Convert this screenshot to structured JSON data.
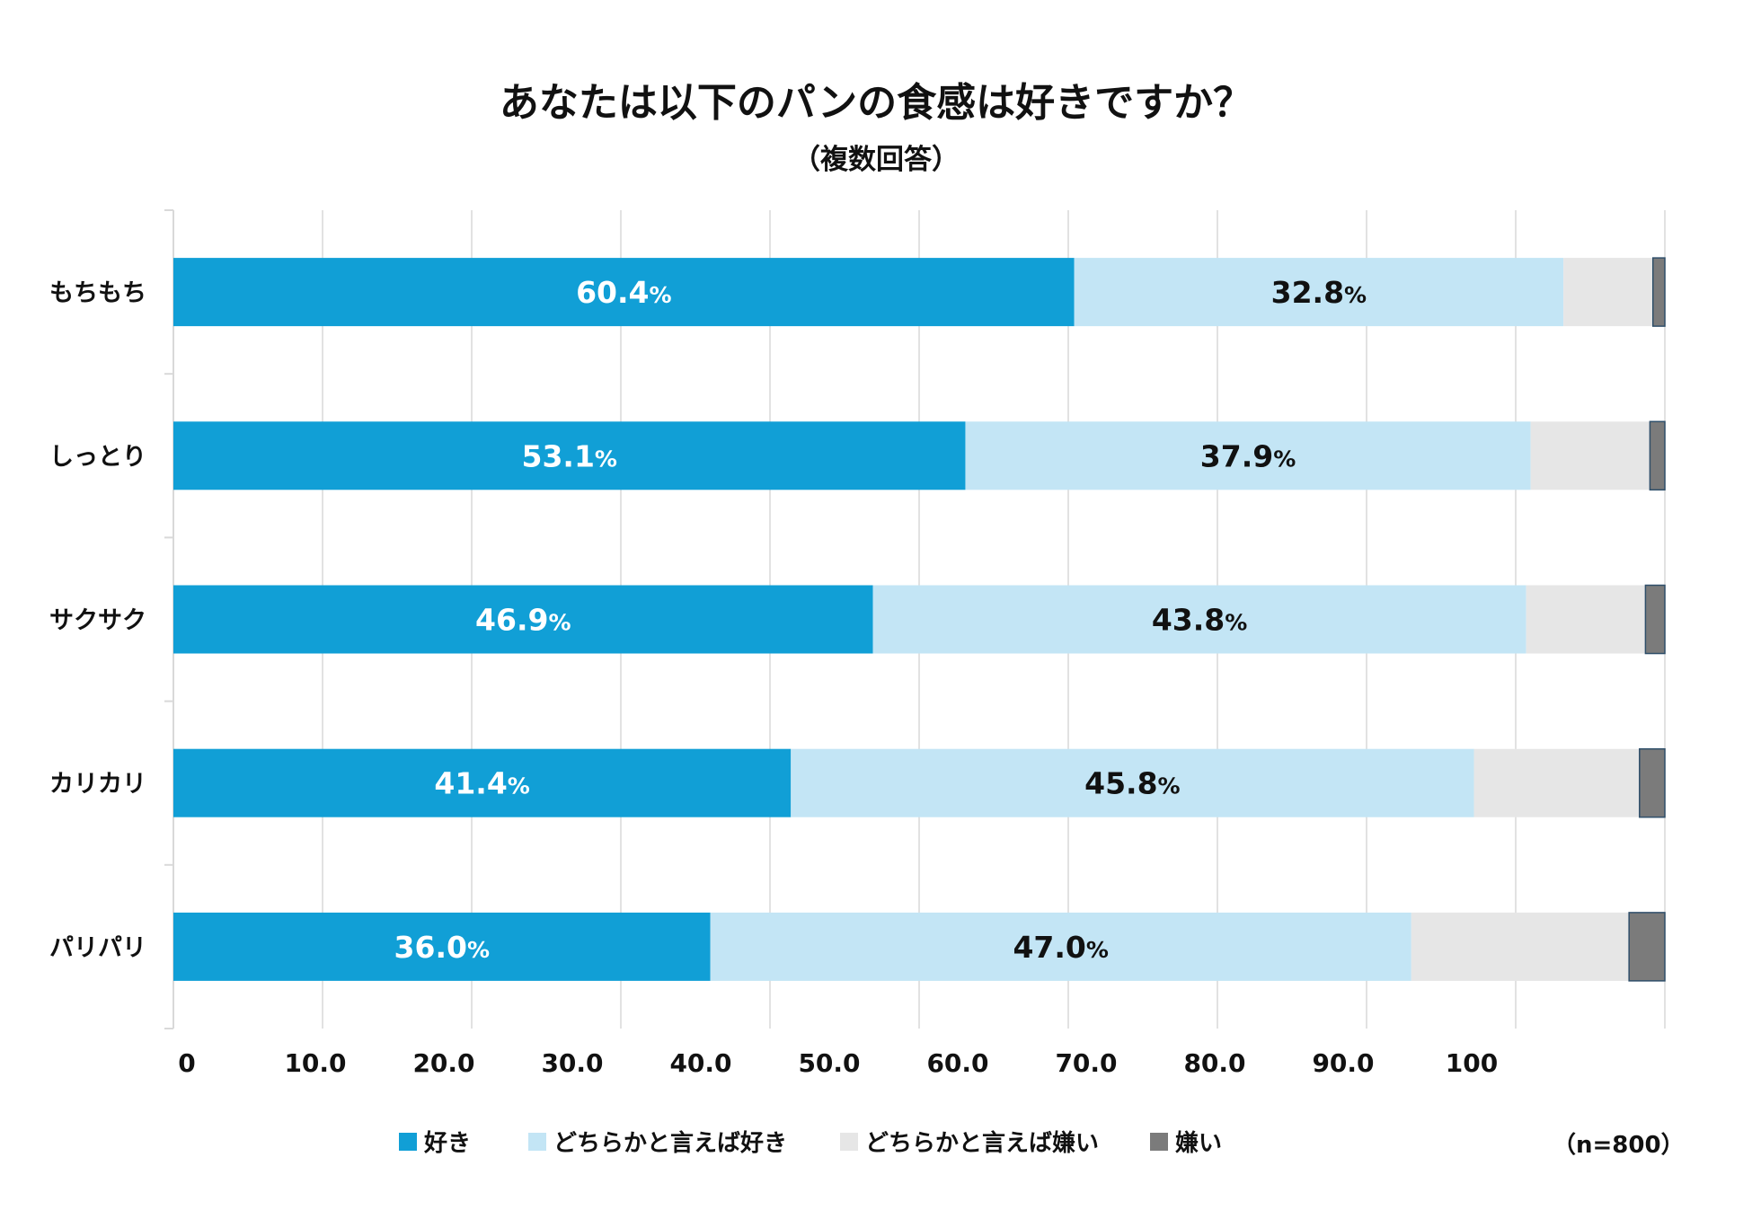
{
  "title": "あなたは以下のパンの食感は好きですか？",
  "subtitle": "（複数回答）",
  "note": "（n=800）",
  "colors": {
    "like": "#119fd6",
    "somewhat_like": "#c3e5f5",
    "somewhat_dislike": "#e6e6e6",
    "dislike": "#7b7b7b",
    "grid": "#d9d9d9"
  },
  "chart_data": {
    "type": "bar",
    "orientation": "horizontal",
    "stacked": true,
    "title": "あなたは以下のパンの食感は好きですか？",
    "subtitle": "（複数回答）",
    "categories": [
      "もちもち",
      "しっとり",
      "サクサク",
      "カリカリ",
      "パリパリ"
    ],
    "series": [
      {
        "name": "好き",
        "values": [
          60.4,
          53.1,
          46.9,
          41.4,
          36.0
        ],
        "labels": [
          "60.4",
          "53.1",
          "46.9",
          "41.4",
          "36.0"
        ]
      },
      {
        "name": "どちらかと言えば好き",
        "values": [
          32.8,
          37.9,
          43.8,
          45.8,
          47.0
        ],
        "labels": [
          "32.8",
          "37.9",
          "43.8",
          "45.8",
          "47.0"
        ]
      },
      {
        "name": "どちらかと言えば嫌い",
        "values": [
          6.0,
          8.0,
          8.0,
          11.1,
          14.6
        ]
      },
      {
        "name": "嫌い",
        "values": [
          0.8,
          1.0,
          1.3,
          1.7,
          2.4
        ]
      }
    ],
    "percent_suffix": "%",
    "xlim": [
      0,
      100
    ],
    "xticks": [
      "0",
      "10.0",
      "20.0",
      "30.0",
      "40.0",
      "50.0",
      "60.0",
      "70.0",
      "80.0",
      "90.0",
      "100"
    ],
    "grid": true,
    "legend_position": "bottom"
  }
}
